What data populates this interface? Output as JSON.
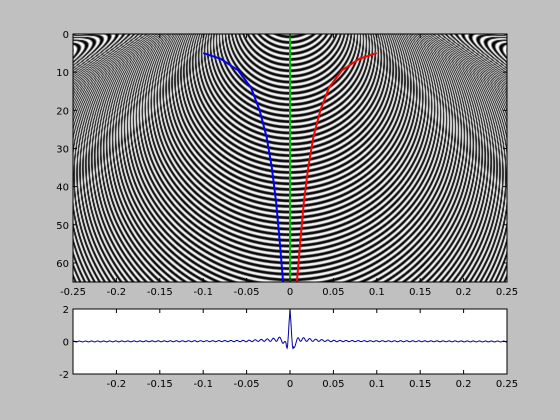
{
  "chart_data": [
    {
      "type": "heatmap",
      "description_free": true,
      "xlim": [
        -0.25,
        0.25
      ],
      "ylim": [
        0,
        65
      ],
      "y_reversed": true,
      "x_ticks": [
        -0.25,
        -0.2,
        -0.15,
        -0.1,
        -0.05,
        0,
        0.05,
        0.1,
        0.15,
        0.2,
        0.25
      ],
      "x_tick_labels": [
        "-0.25",
        "-0.2",
        "-0.15",
        "-0.1",
        "-0.05",
        "0",
        "0.05",
        "0.1",
        "0.15",
        "0.2",
        "0.25"
      ],
      "y_ticks": [
        0,
        10,
        20,
        30,
        40,
        50,
        60
      ],
      "y_tick_labels": [
        "0",
        "10",
        "20",
        "30",
        "40",
        "50",
        "60"
      ],
      "colormap": "gray",
      "grid": false,
      "legend": "none",
      "series": [
        {
          "color": "#0000ff",
          "x": [
            -0.1,
            -0.08,
            -0.06,
            -0.045,
            -0.035,
            -0.027,
            -0.021,
            -0.016,
            -0.012,
            -0.008
          ],
          "y": [
            5,
            6.5,
            9.5,
            14,
            20,
            27,
            35,
            44,
            54,
            65
          ]
        },
        {
          "color": "#00c000",
          "x": [
            0,
            0
          ],
          "y": [
            0,
            65
          ]
        },
        {
          "color": "#ff0000",
          "x": [
            0.1,
            0.08,
            0.06,
            0.045,
            0.035,
            0.027,
            0.021,
            0.016,
            0.012,
            0.008
          ],
          "y": [
            5,
            6.5,
            9.5,
            14,
            20,
            27,
            35,
            44,
            54,
            65
          ]
        }
      ]
    },
    {
      "type": "line",
      "xlim": [
        -0.25,
        0.25
      ],
      "ylim": [
        -2,
        2
      ],
      "x_ticks": [
        -0.2,
        -0.15,
        -0.1,
        -0.05,
        0,
        0.05,
        0.1,
        0.15,
        0.2,
        0.25
      ],
      "x_tick_labels": [
        "-0.2",
        "-0.15",
        "-0.1",
        "-0.05",
        "0",
        "0.05",
        "0.1",
        "0.15",
        "0.2",
        "0.25"
      ],
      "y_ticks": [
        -2,
        0,
        2
      ],
      "y_tick_labels": [
        "-2",
        "0",
        "2"
      ],
      "grid": false,
      "legend": "none",
      "series": [
        {
          "color": "#0000a0",
          "x": [
            -0.25,
            -0.1,
            -0.05,
            -0.02,
            -0.01,
            -0.005,
            -0.003,
            0,
            0.003,
            0.005,
            0.01,
            0.02,
            0.05,
            0.1,
            0.25
          ],
          "y": [
            0,
            0.02,
            0.03,
            0.1,
            0.15,
            -0.2,
            -0.45,
            2.0,
            -0.45,
            -0.2,
            0.15,
            0.1,
            0.03,
            0.02,
            0
          ]
        }
      ]
    }
  ]
}
